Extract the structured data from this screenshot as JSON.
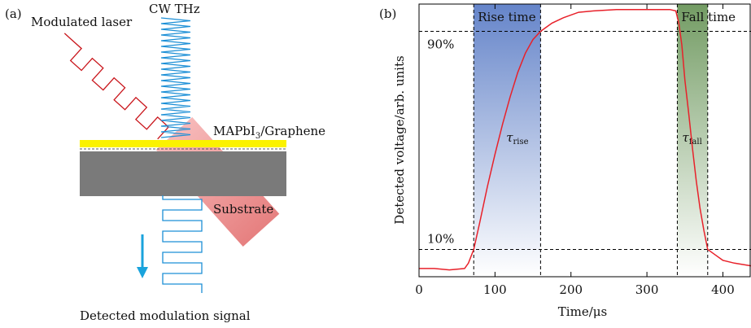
{
  "panel_a": {
    "label": "(a)",
    "laser": "Modulated laser",
    "thz": "CW THz",
    "layer": {
      "main": "MAPbI",
      "sub": "3",
      "rest": "/Graphene"
    },
    "substrate": "Substrate",
    "signal": "Detected modulation signal"
  },
  "chart_data": {
    "type": "line",
    "panel_label": "(b)",
    "x_label": "Time/μs",
    "y_label": "Detected voltage/arb. units",
    "xlim": [
      0,
      437
    ],
    "xticks": [
      0,
      100,
      200,
      300,
      400
    ],
    "ylim": [
      0,
      1
    ],
    "yticks": [
      {
        "value": 0.9,
        "label": "90%"
      },
      {
        "value": 0.1,
        "label": "10%"
      }
    ],
    "series": [
      {
        "color": "#e8212a",
        "x": [
          0,
          20,
          40,
          60,
          65,
          72,
          80,
          90,
          100,
          110,
          120,
          130,
          140,
          150,
          160,
          175,
          190,
          210,
          230,
          260,
          300,
          330,
          338,
          342,
          346,
          350,
          355,
          360,
          365,
          370,
          375,
          380,
          390,
          400,
          415,
          437
        ],
        "values": [
          0.03,
          0.03,
          0.025,
          0.03,
          0.05,
          0.1,
          0.2,
          0.33,
          0.45,
          0.56,
          0.66,
          0.75,
          0.82,
          0.87,
          0.9,
          0.93,
          0.95,
          0.97,
          0.975,
          0.98,
          0.98,
          0.98,
          0.975,
          0.93,
          0.85,
          0.72,
          0.6,
          0.47,
          0.35,
          0.25,
          0.17,
          0.1,
          0.08,
          0.06,
          0.05,
          0.04
        ]
      }
    ],
    "regions": [
      {
        "label": "Rise time",
        "x": [
          72,
          160
        ],
        "color": "#4a6fc0",
        "symbol": "τ",
        "sub": "rise"
      },
      {
        "label": "Fall time",
        "x": [
          340,
          380
        ],
        "color": "#5a8a48",
        "symbol": "τ",
        "sub": "fall"
      }
    ]
  }
}
